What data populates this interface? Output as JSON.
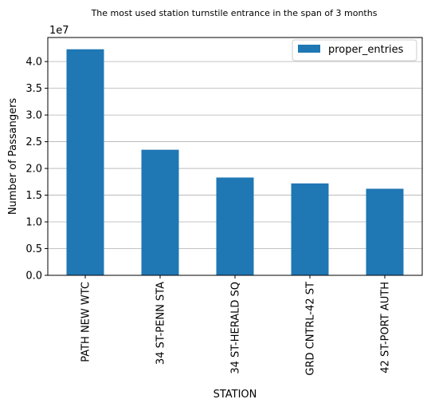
{
  "chart_data": {
    "type": "bar",
    "title": "The most used station turnstile entrance in the span of 3 months",
    "xlabel": "STATION",
    "ylabel": "Number of Passangers",
    "scale_label": "1e7",
    "categories": [
      "PATH NEW WTC",
      "34 ST-PENN STA",
      "34 ST-HERALD SQ",
      "GRD CNTRL-42 ST",
      "42 ST-PORT AUTH"
    ],
    "series": [
      {
        "name": "proper_entries",
        "values": [
          42300000,
          23500000,
          18300000,
          17200000,
          16200000
        ]
      }
    ],
    "ylim": [
      0,
      44500000
    ],
    "yticks": [
      0,
      5000000,
      10000000,
      15000000,
      20000000,
      25000000,
      30000000,
      35000000,
      40000000
    ],
    "ytick_labels": [
      "0.0",
      "0.5",
      "1.0",
      "1.5",
      "2.0",
      "2.5",
      "3.0",
      "3.5",
      "4.0"
    ],
    "grid": "y",
    "legend_position": "top-right",
    "bar_color": "#1f77b4"
  }
}
